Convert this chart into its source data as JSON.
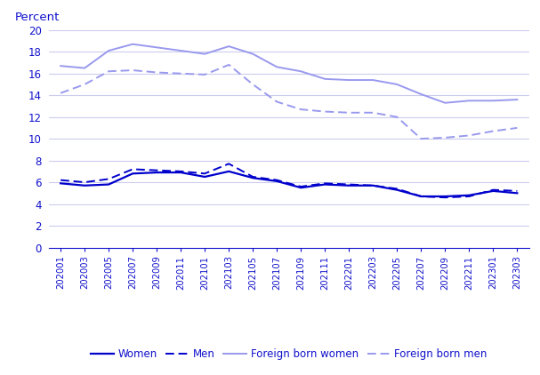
{
  "title": "Percent",
  "x_labels": [
    "202001",
    "202003",
    "202005",
    "202007",
    "202009",
    "202011",
    "202101",
    "202103",
    "202105",
    "202107",
    "202109",
    "202111",
    "202201",
    "202203",
    "202205",
    "202207",
    "202209",
    "202211",
    "202301",
    "202303"
  ],
  "women": [
    5.9,
    5.7,
    5.8,
    6.8,
    6.9,
    6.9,
    6.5,
    7.0,
    6.4,
    6.1,
    5.5,
    5.8,
    5.7,
    5.7,
    5.3,
    4.7,
    4.7,
    4.8,
    5.2,
    5.0
  ],
  "men": [
    6.2,
    6.0,
    6.3,
    7.2,
    7.1,
    7.0,
    6.8,
    7.7,
    6.5,
    6.2,
    5.6,
    5.9,
    5.8,
    5.7,
    5.4,
    4.7,
    4.6,
    4.7,
    5.3,
    5.2
  ],
  "foreign_born_women": [
    16.7,
    16.5,
    18.1,
    18.7,
    18.4,
    18.1,
    17.8,
    18.5,
    17.8,
    16.6,
    16.2,
    15.5,
    15.4,
    15.4,
    15.0,
    14.1,
    13.3,
    13.5,
    13.5,
    13.6
  ],
  "foreign_born_men": [
    14.2,
    15.0,
    16.2,
    16.3,
    16.1,
    16.0,
    15.9,
    16.8,
    15.0,
    13.4,
    12.7,
    12.5,
    12.4,
    12.4,
    12.0,
    10.0,
    10.1,
    10.3,
    10.7,
    11.0
  ],
  "women_color": "#0000cc",
  "men_color": "#0000cc",
  "foreign_born_women_color": "#9999ee",
  "foreign_born_men_color": "#9999ee",
  "grid_color": "#ccccee",
  "label_color": "#1111cc",
  "background_color": "#ffffff",
  "ylim": [
    0,
    20
  ],
  "yticks": [
    0,
    2,
    4,
    6,
    8,
    10,
    12,
    14,
    16,
    18,
    20
  ]
}
